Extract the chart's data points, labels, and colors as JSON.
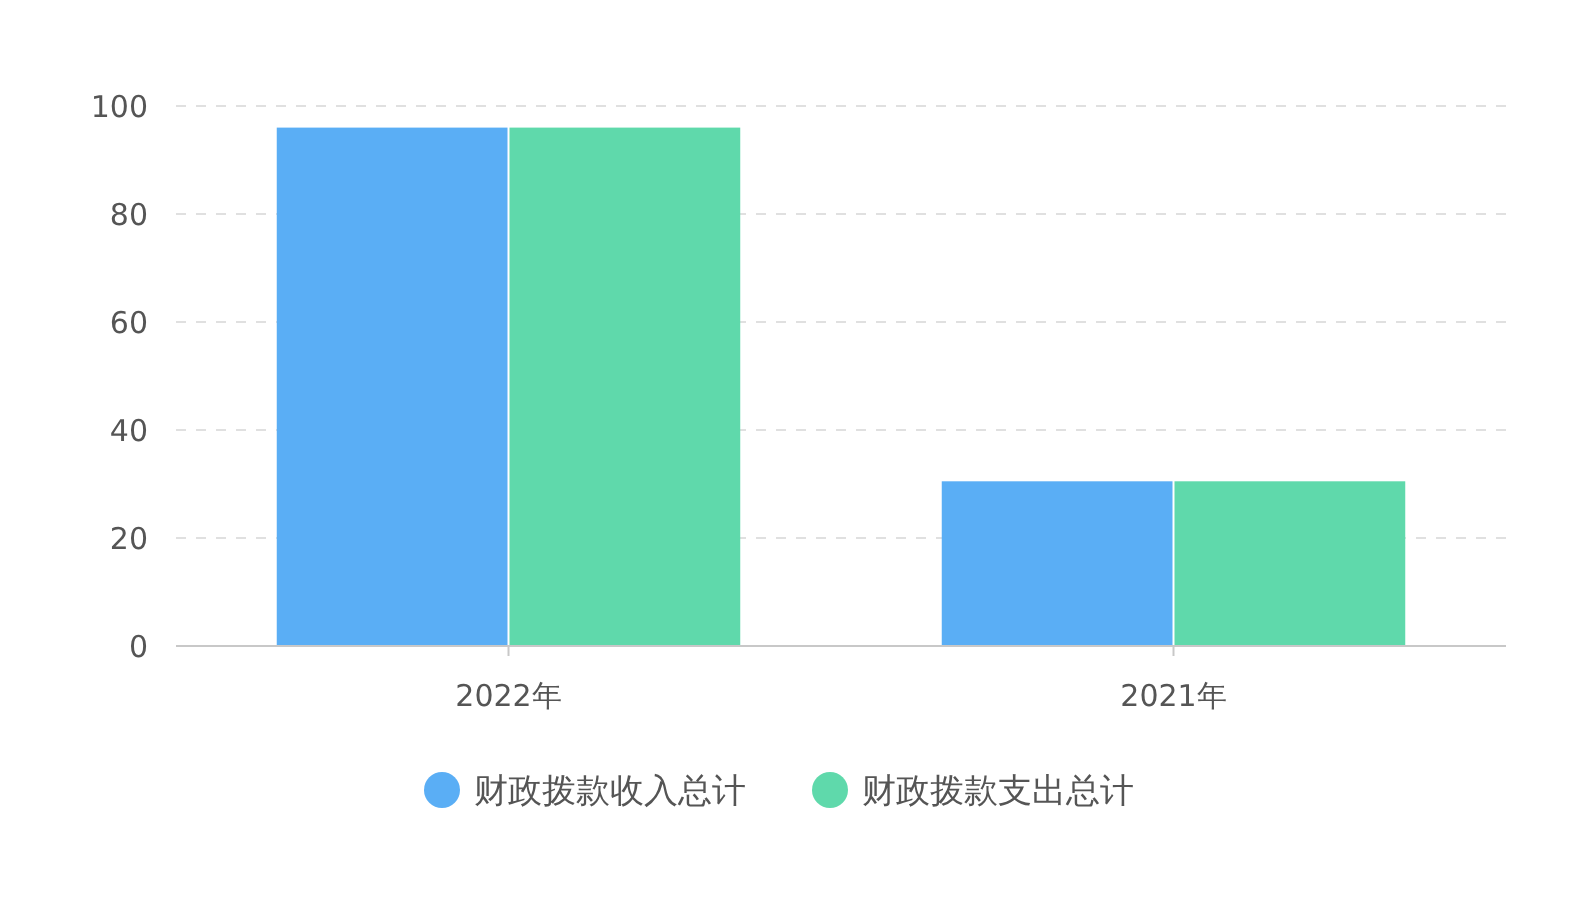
{
  "chart_data": {
    "type": "bar",
    "categories": [
      "2022年",
      "2021年"
    ],
    "series": [
      {
        "name": "财政拨款收入总计",
        "color": "#5aaef5",
        "values": [
          96,
          30.5
        ]
      },
      {
        "name": "财政拨款支出总计",
        "color": "#5fd9ab",
        "values": [
          96,
          30.5
        ]
      }
    ],
    "ylim": [
      0,
      100
    ],
    "yticks": [
      0,
      20,
      40,
      60,
      80,
      100
    ],
    "grid": "y",
    "legend": "bottom"
  }
}
